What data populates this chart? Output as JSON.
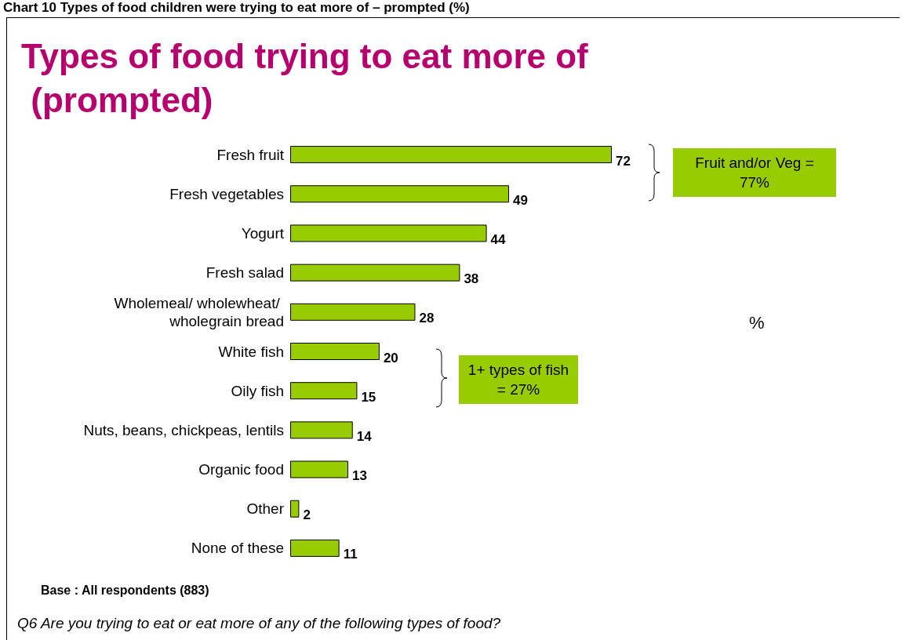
{
  "chart_data": {
    "type": "bar",
    "orientation": "horizontal",
    "title": "Types of food trying to eat more of (prompted)",
    "categories": [
      "Fresh fruit",
      "Fresh vegetables",
      "Yogurt",
      "Fresh salad",
      "Wholemeal/ wholewheat/ wholegrain bread",
      "White fish",
      "Oily fish",
      "Nuts, beans, chickpeas, lentils",
      "Organic food",
      "Other",
      "None of these"
    ],
    "values": [
      72,
      49,
      44,
      38,
      28,
      20,
      15,
      14,
      13,
      2,
      11
    ],
    "color": "#99cc00",
    "data_labels": true,
    "annotations": [
      "Chart 10 Types of food children were trying to eat more of – prompted (%)",
      "Fruit and/or Veg = 77%",
      "1+ types of fish = 27%",
      "%",
      "Base : All respondents (883)",
      "Q6 Are you trying to eat or eat more of any of the following types of food?"
    ]
  }
}
